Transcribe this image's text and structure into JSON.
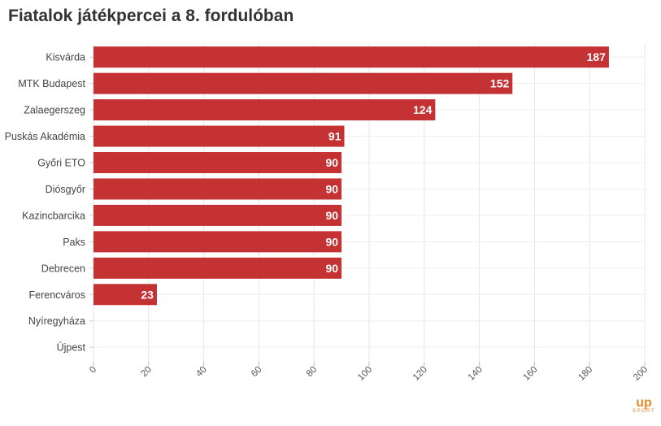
{
  "chart_data": {
    "type": "bar",
    "orientation": "horizontal",
    "title": "Fiatalok játékpercei a 8. fordulóban",
    "categories": [
      "Kisvárda",
      "MTK Budapest",
      "Zalaegerszeg",
      "Puskás Akadémia",
      "Győri ETO",
      "Diósgyőr",
      "Kazincbarcika",
      "Paks",
      "Debrecen",
      "Ferencváros",
      "Nyíregyháza",
      "Újpest"
    ],
    "values": [
      187,
      152,
      124,
      91,
      90,
      90,
      90,
      90,
      90,
      23,
      0,
      0
    ],
    "xlim": [
      0,
      200
    ],
    "xticks": [
      0,
      20,
      40,
      60,
      80,
      100,
      120,
      140,
      160,
      180,
      200
    ],
    "xlabel": "",
    "ylabel": "",
    "grid": true,
    "bar_color": "#c43234"
  },
  "logo": {
    "up": "up",
    "sport": "SPORT"
  }
}
